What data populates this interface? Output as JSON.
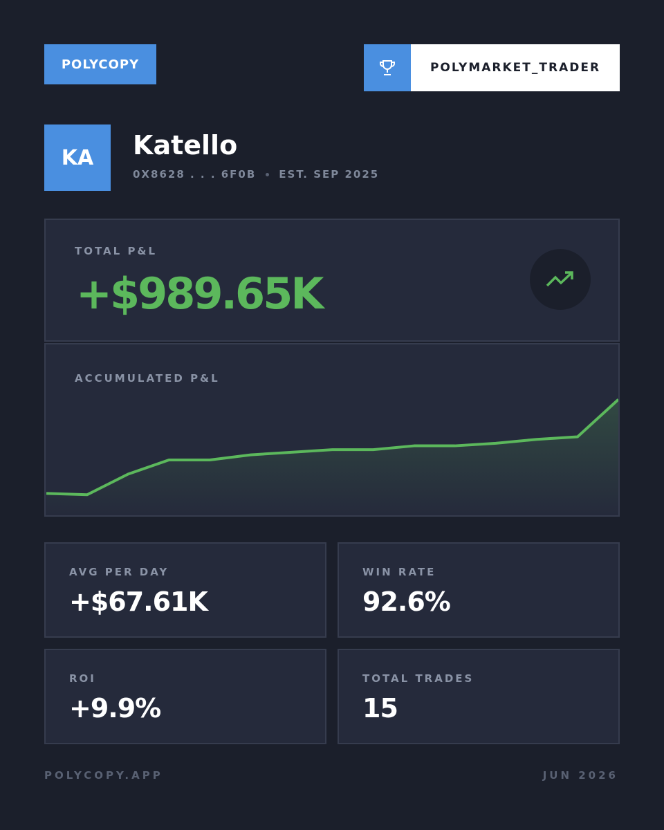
{
  "header": {
    "brand": "POLYCOPY",
    "badge": "POLYMARKET_TRADER"
  },
  "profile": {
    "initials": "KA",
    "name": "Katello",
    "address": "0X8628 . . . 6F0B",
    "established": "EST. SEP 2025"
  },
  "pnl": {
    "label": "TOTAL P&L",
    "value": "+$989.65K"
  },
  "chart_data": {
    "type": "line",
    "title": "ACCUMULATED P&L",
    "values": [
      17,
      16,
      32,
      43,
      43,
      47,
      49,
      51,
      51,
      54,
      54,
      56,
      59,
      61,
      90
    ],
    "color": "#5cb85c",
    "ylim": [
      0,
      100
    ]
  },
  "stats": [
    {
      "label": "AVG PER DAY",
      "value": "+$67.61K"
    },
    {
      "label": "WIN RATE",
      "value": "92.6%"
    },
    {
      "label": "ROI",
      "value": "+9.9%"
    },
    {
      "label": "TOTAL TRADES",
      "value": "15"
    }
  ],
  "footer": {
    "site": "POLYCOPY.APP",
    "date": "JUN 2026"
  }
}
